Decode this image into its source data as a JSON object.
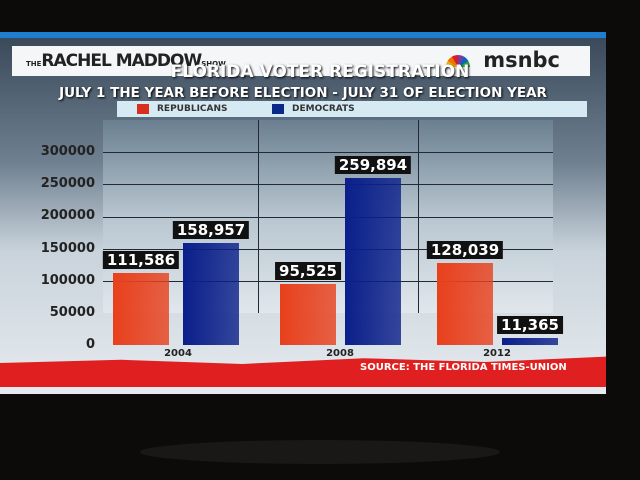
{
  "header": {
    "show_prefix": "THE",
    "show_name": "RACHEL MADDOW",
    "show_suffix": "SHOW",
    "network": "msnbc"
  },
  "chart_data": {
    "type": "bar",
    "title": "FLORIDA VOTER REGISTRATION",
    "subtitle": "JULY 1 THE YEAR BEFORE ELECTION - JULY 31 OF ELECTION YEAR",
    "categories": [
      "2004",
      "2008",
      "2012"
    ],
    "series": [
      {
        "name": "REPUBLICANS",
        "color": "#e8401c",
        "values": [
          111586,
          95525,
          128039
        ],
        "labels": [
          "111,586",
          "95,525",
          "128,039"
        ]
      },
      {
        "name": "DEMOCRATS",
        "color": "#0a1f8a",
        "values": [
          158957,
          259894,
          11365
        ],
        "labels": [
          "158,957",
          "259,894",
          "11,365"
        ]
      }
    ],
    "yticks": [
      "0",
      "50000",
      "100000",
      "150000",
      "200000",
      "250000",
      "300000"
    ],
    "ylim": [
      0,
      300000
    ],
    "legend": "top",
    "grid": true,
    "source": "SOURCE: THE FLORIDA TIMES-UNION"
  }
}
